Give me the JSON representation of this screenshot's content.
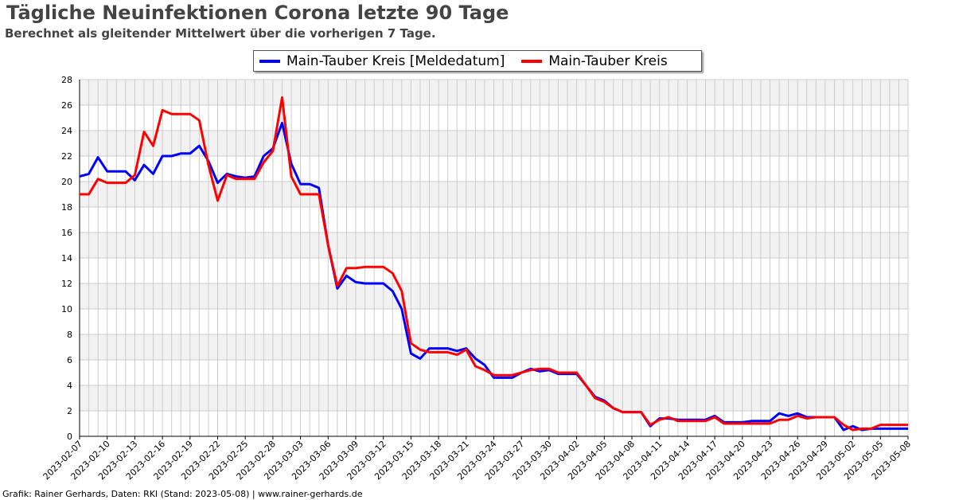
{
  "header": {
    "title": "Tägliche Neuinfektionen Corona letzte 90 Tage",
    "subtitle": "Berechnet als gleitender Mittelwert über die vorherigen 7 Tage."
  },
  "footer": {
    "credit": "Grafik: Rainer Gerhards, Daten: RKI (Stand: 2023-05-08) | www.rainer-gerhards.de"
  },
  "colors": {
    "series1": "#0000ff",
    "series2": "#ff0000",
    "band": "#f2f2f2",
    "grid": "#cccccc"
  },
  "chart_data": {
    "type": "line",
    "title": "Tägliche Neuinfektionen Corona letzte 90 Tage",
    "subtitle": "Berechnet als gleitender Mittelwert über die vorherigen 7 Tage.",
    "xlabel": "",
    "ylabel": "",
    "x_start": "2023-02-07",
    "x_end": "2023-05-08",
    "x_ticks": [
      "2023-02-07",
      "2023-02-10",
      "2023-02-13",
      "2023-02-16",
      "2023-02-19",
      "2023-02-22",
      "2023-02-25",
      "2023-02-28",
      "2023-03-03",
      "2023-03-06",
      "2023-03-09",
      "2023-03-12",
      "2023-03-15",
      "2023-03-18",
      "2023-03-21",
      "2023-03-24",
      "2023-03-27",
      "2023-03-30",
      "2023-04-02",
      "2023-04-05",
      "2023-04-08",
      "2023-04-11",
      "2023-04-14",
      "2023-04-17",
      "2023-04-20",
      "2023-04-23",
      "2023-04-26",
      "2023-04-29",
      "2023-05-02",
      "2023-05-05",
      "2023-05-08"
    ],
    "ylim": [
      0,
      28
    ],
    "y_ticks": [
      0,
      2,
      4,
      6,
      8,
      10,
      12,
      14,
      16,
      18,
      20,
      22,
      24,
      26,
      28
    ],
    "grid": true,
    "legend_position": "top-center",
    "series": [
      {
        "name": "Main-Tauber Kreis [Meldedatum]",
        "color": "#0000ff",
        "values": [
          20.4,
          20.6,
          21.9,
          20.8,
          20.8,
          20.8,
          20.1,
          21.3,
          20.6,
          22.0,
          22.0,
          22.2,
          22.2,
          22.8,
          21.6,
          19.9,
          20.6,
          20.4,
          20.3,
          20.4,
          22.0,
          22.6,
          24.6,
          21.4,
          19.8,
          19.8,
          19.5,
          15.0,
          11.6,
          12.6,
          12.1,
          12.0,
          12.0,
          12.0,
          11.4,
          10.0,
          6.5,
          6.1,
          6.9,
          6.9,
          6.9,
          6.7,
          6.9,
          6.1,
          5.6,
          4.6,
          4.6,
          4.6,
          5.0,
          5.3,
          5.1,
          5.2,
          4.9,
          4.9,
          4.9,
          4.0,
          3.1,
          2.8,
          2.2,
          1.9,
          1.9,
          1.9,
          0.8,
          1.4,
          1.4,
          1.3,
          1.3,
          1.3,
          1.3,
          1.6,
          1.1,
          1.1,
          1.1,
          1.2,
          1.2,
          1.2,
          1.8,
          1.6,
          1.8,
          1.5,
          1.5,
          1.5,
          1.5,
          0.5,
          0.8,
          0.5,
          0.6,
          0.6,
          0.6,
          0.6,
          0.6
        ]
      },
      {
        "name": "Main-Tauber Kreis",
        "color": "#ff0000",
        "values": [
          19.0,
          19.0,
          20.2,
          19.9,
          19.9,
          19.9,
          20.5,
          23.9,
          22.8,
          25.6,
          25.3,
          25.3,
          25.3,
          24.8,
          21.3,
          18.5,
          20.5,
          20.2,
          20.2,
          20.2,
          21.5,
          22.4,
          26.6,
          20.4,
          19.0,
          19.0,
          19.0,
          15.0,
          11.8,
          13.2,
          13.2,
          13.3,
          13.3,
          13.3,
          12.8,
          11.4,
          7.3,
          6.8,
          6.6,
          6.6,
          6.6,
          6.4,
          6.8,
          5.5,
          5.2,
          4.8,
          4.8,
          4.8,
          5.0,
          5.2,
          5.3,
          5.3,
          5.0,
          5.0,
          5.0,
          4.0,
          3.0,
          2.7,
          2.2,
          1.9,
          1.9,
          1.9,
          0.9,
          1.3,
          1.5,
          1.2,
          1.2,
          1.2,
          1.2,
          1.5,
          1.0,
          1.0,
          1.0,
          1.0,
          1.0,
          1.0,
          1.3,
          1.3,
          1.6,
          1.4,
          1.5,
          1.5,
          1.5,
          0.9,
          0.5,
          0.6,
          0.6,
          0.9,
          0.9,
          0.9,
          0.9
        ]
      }
    ]
  }
}
